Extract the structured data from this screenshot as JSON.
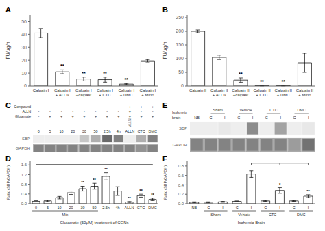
{
  "chart_data": [
    {
      "type": "bar",
      "title": "A",
      "categories": [
        "Calpain I",
        "Calpain I\n+ ALLN",
        "Calpain I\n+calpast",
        "Calpain I\n+ CTC",
        "Calpain I\n+ DMC",
        "Calpain I\n+ Mino"
      ],
      "values": [
        41.0,
        11.0,
        5.5,
        5.0,
        1.5,
        19.5
      ],
      "errors": [
        3.5,
        1.5,
        1.5,
        2.0,
        0.5,
        1.0
      ],
      "annotations": [
        {
          "index": 1,
          "text": "**"
        },
        {
          "index": 2,
          "text": "**"
        },
        {
          "index": 3,
          "text": "**"
        },
        {
          "index": 4,
          "text": "**"
        }
      ],
      "ylabel": "FU/μg/h",
      "ylim": [
        0,
        55
      ],
      "yticks": [
        0,
        10,
        20,
        30,
        40,
        50
      ],
      "color": "#ffffff"
    },
    {
      "type": "bar",
      "title": "B",
      "categories": [
        "Calpain II",
        "Calpain II\n+ ALLN",
        "Calpain II\n+calpast",
        "Calpain II\n+ CTC",
        "Calpain II\n+ DMC",
        "Calpain II\n+ Mino"
      ],
      "values": [
        200.0,
        105.0,
        22.0,
        1.5,
        1.5,
        85.0
      ],
      "errors": [
        5.0,
        8.0,
        8.0,
        1.0,
        1.0,
        35.0
      ],
      "annotations": [
        {
          "index": 2,
          "text": "**"
        },
        {
          "index": 3,
          "text": "**"
        },
        {
          "index": 4,
          "text": "**"
        }
      ],
      "ylabel": "FU/μg/h",
      "ylim": [
        0,
        260
      ],
      "yticks": [
        0,
        50,
        100,
        150,
        200,
        250
      ],
      "color": "#ffffff"
    },
    {
      "type": "heatmap",
      "title": "C",
      "categories": [
        "0",
        "5",
        "10",
        "20",
        "30",
        "50",
        "2.5h",
        "4h",
        "ALLN",
        "CTC",
        "DMC"
      ],
      "rows": [
        "SBP",
        "GAPDH"
      ],
      "cells": [
        [
          0,
          0,
          0,
          0,
          0.25,
          0.35,
          0.65,
          0.55,
          0.0,
          0.35,
          0.55
        ],
        [
          0.75,
          0.75,
          0.75,
          0.75,
          0.75,
          0.75,
          0.75,
          0.75,
          0.75,
          0.65,
          0.75
        ]
      ],
      "header_rows": [
        {
          "label": "Compound",
          "values": [
            "-",
            "-",
            "-",
            "-",
            "-",
            "-",
            "-",
            "-",
            "+",
            "+",
            "+"
          ]
        },
        {
          "label": "ALLN",
          "values": [
            "-",
            "-",
            "-",
            "-",
            "-",
            "-",
            "-",
            "-",
            "+",
            "-",
            "-"
          ]
        },
        {
          "label": "Glutamate",
          "values": [
            "-",
            "+",
            "+",
            "+",
            "+",
            "+",
            "+",
            "+",
            "+",
            "+",
            "+"
          ]
        }
      ],
      "annotations": [
        {
          "index": 8,
          "text": "ALLN"
        }
      ]
    },
    {
      "type": "bar",
      "title": "D",
      "categories": [
        "0",
        "5",
        "10",
        "20",
        "30",
        "50",
        "2.5h",
        "4h",
        "ALLN",
        "CTC",
        "DMC"
      ],
      "values": [
        0.1,
        0.12,
        0.25,
        0.45,
        0.62,
        0.72,
        1.13,
        0.52,
        0.07,
        0.33,
        0.18
      ],
      "errors": [
        0.03,
        0.03,
        0.05,
        0.07,
        0.1,
        0.12,
        0.15,
        0.18,
        0.02,
        0.06,
        0.05
      ],
      "annotations": [
        {
          "index": 4,
          "text": "**"
        },
        {
          "index": 5,
          "text": "**"
        },
        {
          "index": 6,
          "text": "**"
        },
        {
          "index": 8,
          "text": "**"
        },
        {
          "index": 9,
          "text": "**"
        },
        {
          "index": 10,
          "text": "**"
        }
      ],
      "ylabel": "Ratio (SBP/GAPDH)",
      "ylim": [
        0,
        1.75
      ],
      "yticks": [
        {
          "value": 0,
          "label": "0.0"
        },
        0.4,
        0.8,
        1.2,
        1.6
      ],
      "xlabel": "Glutamate (50μM) treatment of CGNs",
      "x_groups": [
        {
          "label": "Min",
          "from": 0,
          "to": 5
        }
      ],
      "brackets": [
        {
          "indices": [
            0,
            10
          ],
          "y": 1.62,
          "end": 1.58
        }
      ],
      "color": "#ffffff"
    },
    {
      "type": "heatmap",
      "title": "E",
      "categories": [
        "NB",
        "C",
        "I",
        "C",
        "I",
        "C",
        "I",
        "C",
        "I"
      ],
      "rows": [
        "SBP",
        "GAPDH"
      ],
      "cells": [
        [
          0.0,
          0.0,
          0.1,
          0.0,
          0.5,
          0.0,
          0.4,
          0.0,
          0.1
        ],
        [
          0.75,
          0.75,
          0.75,
          0.75,
          0.75,
          0.75,
          0.75,
          0.6,
          0.85
        ]
      ],
      "x_groups": [
        {
          "label": "Sham",
          "from": 1,
          "to": 2
        },
        {
          "label": "Vehicle",
          "from": 3,
          "to": 4
        },
        {
          "label": "CTC",
          "from": 5,
          "to": 6
        },
        {
          "label": "DMC",
          "from": 7,
          "to": 8
        }
      ],
      "annotations": [
        {
          "text": "Ischemic\nbrain"
        }
      ]
    },
    {
      "type": "bar",
      "title": "F",
      "categories": [
        "NB",
        "C",
        "I",
        "C",
        "I",
        "C",
        "I",
        "C",
        "I"
      ],
      "values": [
        0.03,
        0.03,
        0.04,
        0.05,
        0.63,
        0.06,
        0.28,
        0.06,
        0.16
      ],
      "errors": [
        0.01,
        0.01,
        0.01,
        0.01,
        0.07,
        0.01,
        0.06,
        0.01,
        0.03
      ],
      "annotations": [
        {
          "index": 6,
          "text": "*"
        },
        {
          "index": 8,
          "text": "**"
        }
      ],
      "ylabel": "Ratio (SBP/GAPDH)",
      "ylim": [
        0,
        0.9
      ],
      "yticks": [
        {
          "value": 0,
          "label": "0.0"
        },
        0.2,
        0.4,
        0.6,
        0.8
      ],
      "xlabel": "Ischemic Brain",
      "x_groups": [
        {
          "label": "Sham",
          "from": 1,
          "to": 2
        },
        {
          "label": "Vehicle",
          "from": 3,
          "to": 4
        },
        {
          "label": "CTC",
          "from": 5,
          "to": 6
        },
        {
          "label": "DMC",
          "from": 7,
          "to": 8
        }
      ],
      "brackets": [
        {
          "indices": [
            4,
            6,
            8
          ],
          "y": 0.86,
          "end": 0.82
        }
      ],
      "color": "#ffffff"
    }
  ]
}
